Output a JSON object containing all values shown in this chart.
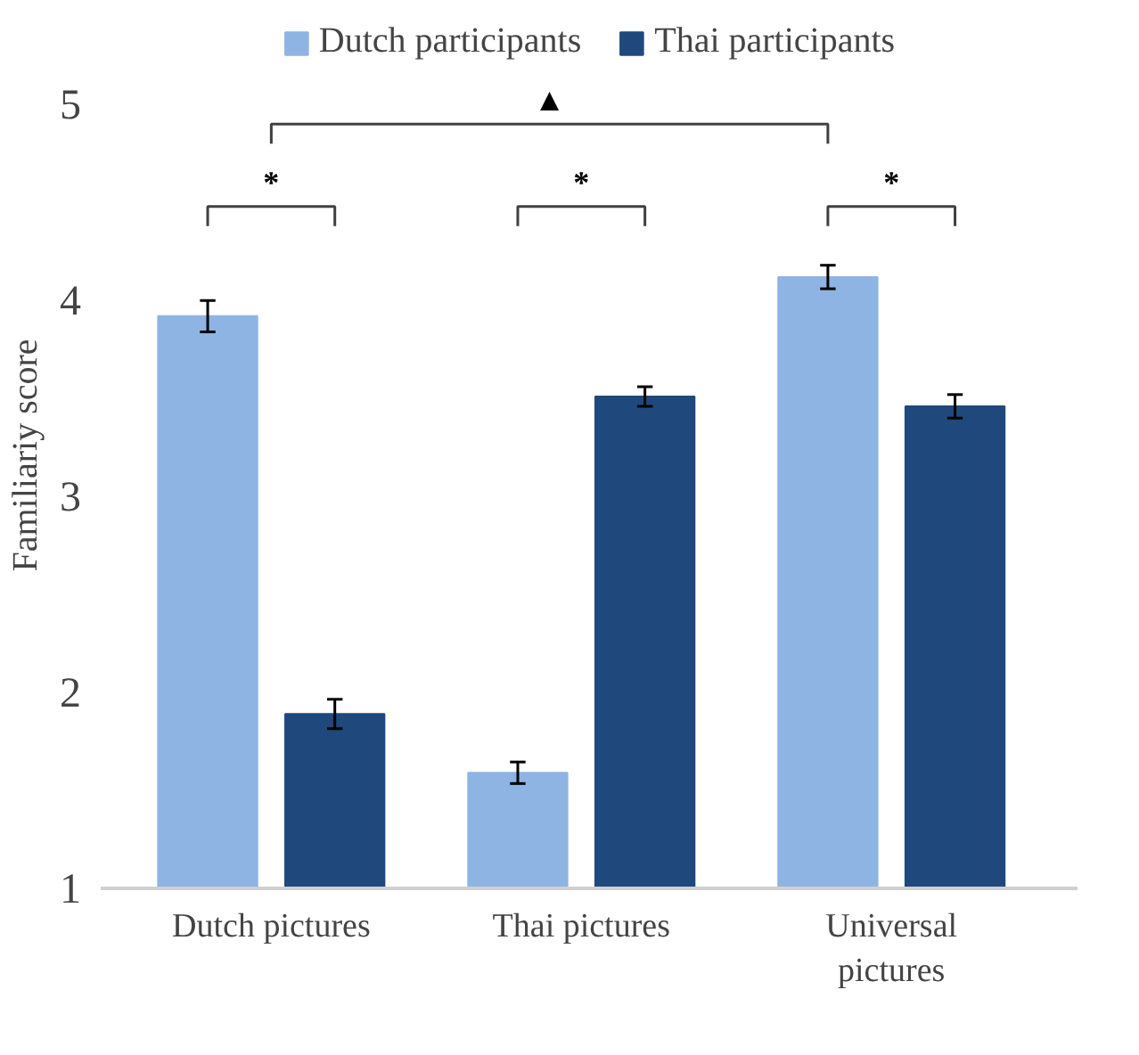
{
  "chart_data": {
    "type": "bar",
    "ylabel": "Familiariy score",
    "categories": [
      "Dutch pictures",
      "Thai pictures",
      "Universal pictures"
    ],
    "series": [
      {
        "name": "Dutch participants",
        "color": "#8eb4e3",
        "values": [
          3.92,
          1.59,
          4.12
        ],
        "errors": [
          0.08,
          0.055,
          0.06
        ]
      },
      {
        "name": "Thai participants",
        "color": "#1f497d",
        "values": [
          1.89,
          3.51,
          3.46
        ],
        "errors": [
          0.075,
          0.05,
          0.06
        ]
      }
    ],
    "ylim": [
      1,
      5
    ],
    "yticks": [
      1,
      2,
      3,
      4,
      5
    ],
    "grid": false,
    "legend": "top",
    "annotations": [
      "▲",
      "*",
      "*",
      "*"
    ]
  }
}
